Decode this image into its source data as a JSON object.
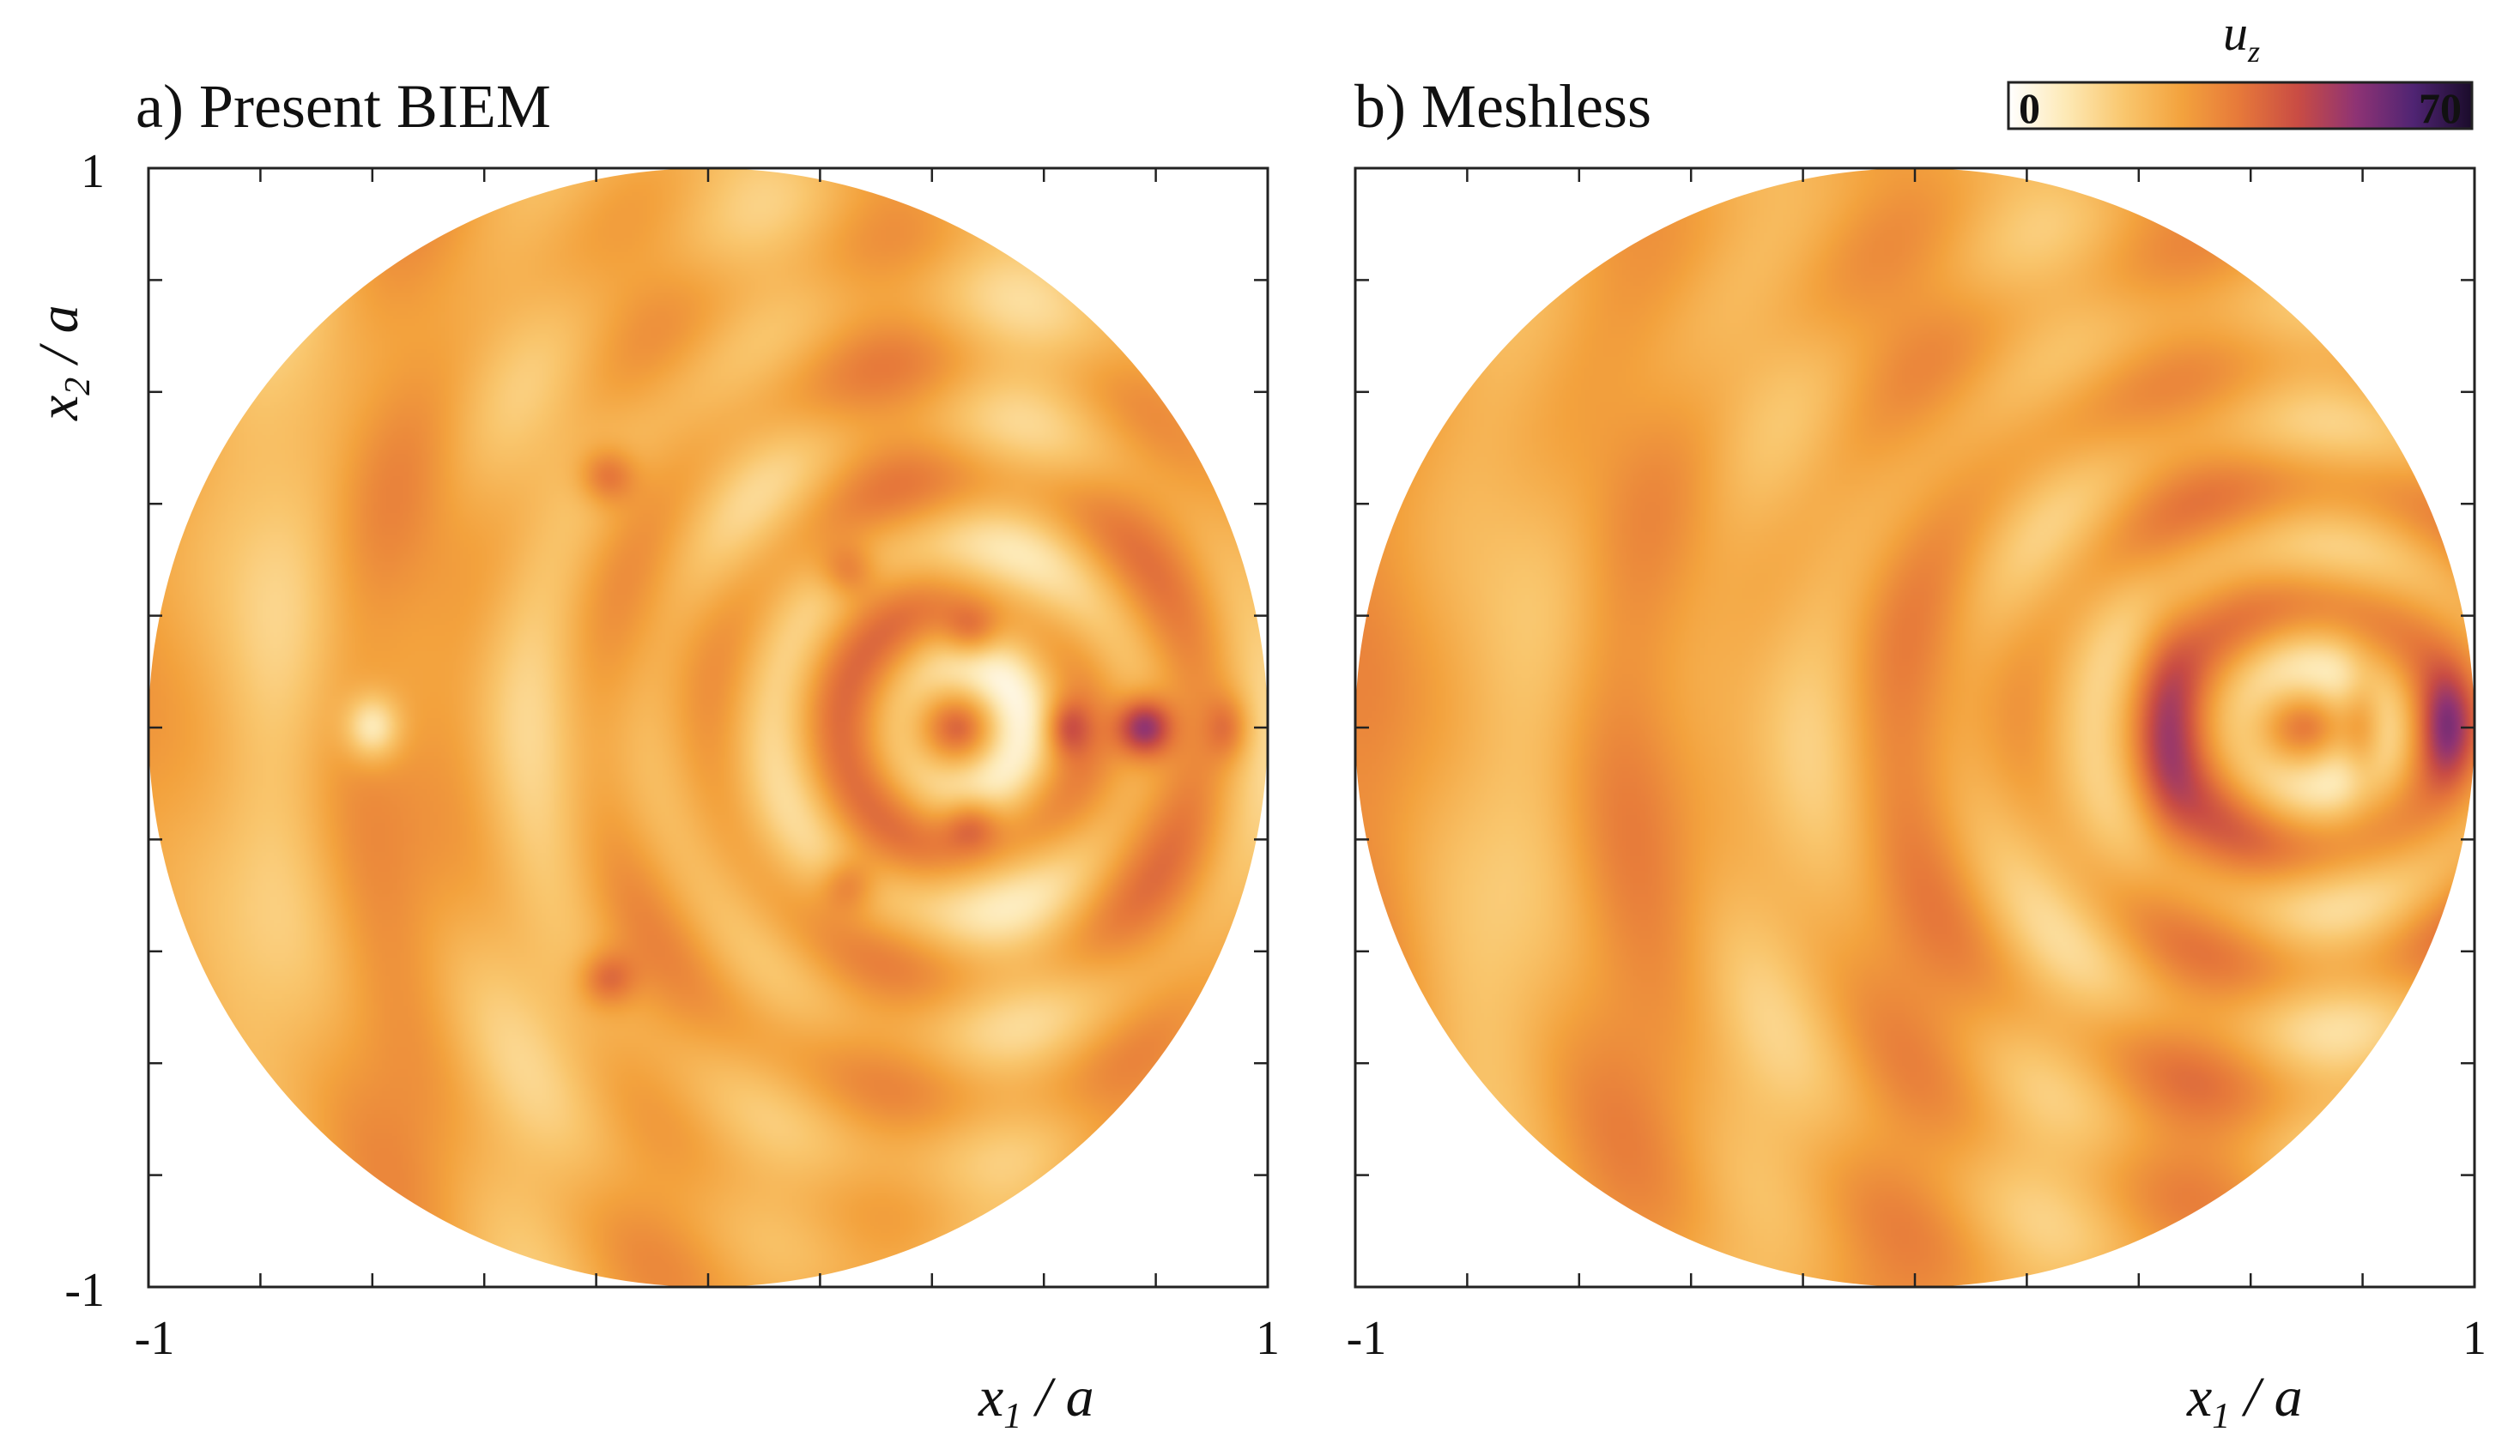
{
  "colors": {
    "stops": [
      "#ffffff",
      "#fde9b5",
      "#f9c66d",
      "#f3a23d",
      "#e6783a",
      "#c94c44",
      "#8e3374",
      "#4f2473",
      "#1a0b2a"
    ],
    "axis": "#222222"
  },
  "colorbar": {
    "title_main": "u",
    "title_sub": "z",
    "min_label": "0",
    "max_label": "70",
    "min": 0,
    "max": 70
  },
  "chart_data": [
    {
      "type": "heatmap",
      "id": "biem",
      "title": "a) Present BIEM",
      "method": "biem",
      "xlabel_main": "x",
      "xlabel_sub": "1",
      "xlabel_rest": " / a",
      "ylabel_main": "x",
      "ylabel_sub": "2",
      "ylabel_rest": " / a",
      "xlim": [
        -1,
        1
      ],
      "ylim": [
        -1,
        1
      ],
      "x_tick_labels": [
        "-1",
        "1"
      ],
      "y_tick_labels": [
        "1",
        "-1"
      ],
      "minor_ticks": 10,
      "domain": "disk of radius a",
      "value_range": [
        0,
        70
      ],
      "peak": {
        "x": 0.8,
        "y": 0.0,
        "value": 70
      }
    },
    {
      "type": "heatmap",
      "id": "meshless",
      "title": "b) Meshless",
      "method": "meshless",
      "xlabel_main": "x",
      "xlabel_sub": "1",
      "xlabel_rest": " / a",
      "xlim": [
        -1,
        1
      ],
      "ylim": [
        -1,
        1
      ],
      "x_tick_labels": [
        "-1",
        "1"
      ],
      "minor_ticks": 10,
      "domain": "disk of radius a",
      "value_range": [
        0,
        70
      ],
      "peak": {
        "x": 0.95,
        "y": 0.0,
        "value": 60
      }
    }
  ]
}
